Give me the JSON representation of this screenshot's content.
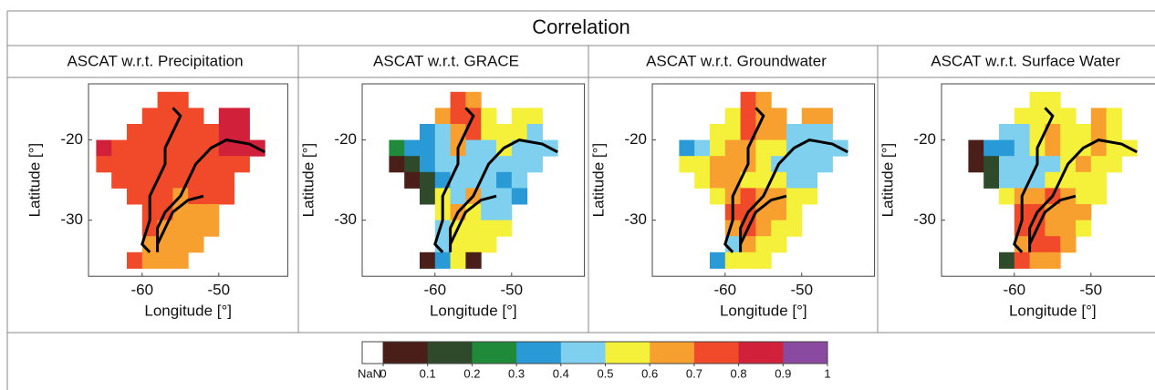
{
  "title": "Correlation",
  "colorbar": {
    "nan_label": "NaN",
    "nan_color": "#ffffff",
    "lim": [
      0,
      1
    ],
    "ticks": [
      0,
      0.1,
      0.2,
      0.3,
      0.4,
      0.5,
      0.6,
      0.7,
      0.8,
      0.9,
      1
    ],
    "colors": [
      "#4a1f1a",
      "#2e4a2a",
      "#1f8a3a",
      "#2a9ad6",
      "#7fd0ee",
      "#f5f03a",
      "#f7a030",
      "#f04a2a",
      "#d0203a",
      "#8a4aa0"
    ]
  },
  "chart_data": [
    {
      "type": "heatmap",
      "title": "ASCAT w.r.t. Precipitation",
      "xlabel": "Longitude [°]",
      "ylabel": "Latitude [°]",
      "xlim": [
        -67,
        -41
      ],
      "ylim": [
        -37,
        -13
      ],
      "xticks": [
        -60,
        -50
      ],
      "yticks": [
        -20,
        -30
      ],
      "x": [
        -65,
        -63,
        -61,
        -59,
        -57,
        -55,
        -53,
        -51,
        -49,
        -47,
        -45
      ],
      "y": [
        -15,
        -17,
        -19,
        -21,
        -23,
        -25,
        -27,
        -29,
        -31,
        -33,
        -35
      ],
      "values": [
        [
          null,
          null,
          null,
          null,
          0.75,
          0.75,
          null,
          null,
          null,
          null,
          null
        ],
        [
          null,
          null,
          null,
          0.75,
          0.75,
          0.75,
          0.75,
          null,
          0.85,
          0.85,
          null
        ],
        [
          null,
          null,
          0.75,
          0.75,
          0.75,
          0.75,
          0.75,
          0.75,
          0.85,
          0.85,
          null
        ],
        [
          0.85,
          0.75,
          0.75,
          0.75,
          0.75,
          0.75,
          0.75,
          0.75,
          0.85,
          0.85,
          0.85
        ],
        [
          0.75,
          0.75,
          0.75,
          0.75,
          0.75,
          0.75,
          0.75,
          0.75,
          0.75,
          0.75,
          null
        ],
        [
          null,
          0.75,
          0.75,
          0.75,
          0.75,
          0.75,
          0.75,
          0.75,
          0.75,
          null,
          null
        ],
        [
          null,
          null,
          0.75,
          0.75,
          0.75,
          0.65,
          0.75,
          0.75,
          0.75,
          null,
          null
        ],
        [
          null,
          null,
          null,
          0.75,
          0.75,
          0.65,
          0.65,
          0.65,
          null,
          null,
          null
        ],
        [
          null,
          null,
          null,
          0.75,
          0.65,
          0.65,
          0.65,
          0.65,
          null,
          null,
          null
        ],
        [
          null,
          null,
          null,
          0.65,
          0.65,
          0.65,
          0.65,
          null,
          null,
          null,
          null
        ],
        [
          null,
          null,
          0.75,
          0.65,
          0.65,
          0.65,
          null,
          null,
          null,
          null,
          null
        ]
      ]
    },
    {
      "type": "heatmap",
      "title": "ASCAT w.r.t. GRACE",
      "xlabel": "Longitude [°]",
      "ylabel": "Latitude [°]",
      "xlim": [
        -69.5,
        -40.5
      ],
      "ylim": [
        -37,
        -13
      ],
      "xticks": [
        -60,
        -50
      ],
      "yticks": [
        -20,
        -30
      ],
      "x": [
        -65,
        -63,
        -61,
        -59,
        -57,
        -55,
        -53,
        -51,
        -49,
        -47,
        -45
      ],
      "y": [
        -15,
        -17,
        -19,
        -21,
        -23,
        -25,
        -27,
        -29,
        -31,
        -33,
        -35
      ],
      "values": [
        [
          null,
          null,
          null,
          null,
          0.75,
          0.65,
          null,
          null,
          null,
          null,
          null
        ],
        [
          null,
          null,
          null,
          0.65,
          0.75,
          0.75,
          0.55,
          null,
          0.55,
          0.55,
          null
        ],
        [
          null,
          null,
          0.35,
          0.45,
          0.65,
          0.75,
          0.55,
          0.55,
          0.55,
          0.45,
          null
        ],
        [
          0.25,
          0.35,
          0.35,
          0.45,
          0.65,
          0.45,
          0.45,
          0.55,
          0.45,
          0.45,
          0.45
        ],
        [
          0.05,
          0.15,
          0.35,
          0.45,
          0.45,
          0.45,
          0.45,
          0.45,
          0.45,
          0.45,
          null
        ],
        [
          null,
          0.05,
          0.15,
          0.35,
          0.45,
          0.45,
          0.45,
          0.35,
          0.45,
          null,
          null
        ],
        [
          null,
          null,
          0.15,
          0.55,
          0.45,
          0.65,
          0.45,
          0.45,
          0.35,
          null,
          null
        ],
        [
          null,
          null,
          null,
          0.55,
          0.65,
          0.55,
          0.45,
          0.45,
          null,
          null,
          null
        ],
        [
          null,
          null,
          null,
          0.45,
          0.55,
          0.55,
          0.55,
          0.55,
          null,
          null,
          null
        ],
        [
          null,
          null,
          null,
          0.45,
          0.55,
          0.55,
          0.55,
          null,
          null,
          null,
          null
        ],
        [
          null,
          null,
          0.05,
          0.35,
          0.55,
          0.05,
          null,
          null,
          null,
          null,
          null
        ]
      ]
    },
    {
      "type": "heatmap",
      "title": "ASCAT w.r.t. Groundwater",
      "xlabel": "Longitude [°]",
      "ylabel": "Latitude [°]",
      "xlim": [
        -69.5,
        -40.5
      ],
      "ylim": [
        -37,
        -13
      ],
      "xticks": [
        -60,
        -50
      ],
      "yticks": [
        -20,
        -30
      ],
      "x": [
        -65,
        -63,
        -61,
        -59,
        -57,
        -55,
        -53,
        -51,
        -49,
        -47,
        -45
      ],
      "y": [
        -15,
        -17,
        -19,
        -21,
        -23,
        -25,
        -27,
        -29,
        -31,
        -33,
        -35
      ],
      "values": [
        [
          null,
          null,
          null,
          null,
          0.75,
          0.65,
          null,
          null,
          null,
          null,
          null
        ],
        [
          null,
          null,
          null,
          0.55,
          0.75,
          0.65,
          0.65,
          null,
          0.65,
          0.65,
          null
        ],
        [
          null,
          null,
          0.55,
          0.55,
          0.75,
          0.65,
          0.65,
          0.45,
          0.45,
          0.45,
          null
        ],
        [
          0.35,
          0.45,
          0.55,
          0.65,
          0.65,
          0.55,
          0.55,
          0.45,
          0.45,
          0.45,
          0.45
        ],
        [
          0.55,
          0.55,
          0.65,
          0.65,
          0.65,
          0.55,
          0.45,
          0.45,
          0.45,
          0.45,
          null
        ],
        [
          null,
          0.55,
          0.65,
          0.65,
          0.55,
          0.55,
          0.55,
          0.45,
          0.45,
          null,
          null
        ],
        [
          null,
          null,
          0.55,
          0.65,
          0.75,
          0.65,
          0.65,
          0.55,
          0.55,
          null,
          null
        ],
        [
          null,
          null,
          null,
          0.75,
          0.75,
          0.65,
          0.65,
          0.55,
          null,
          null,
          null
        ],
        [
          null,
          null,
          null,
          0.65,
          0.75,
          0.65,
          0.55,
          0.55,
          null,
          null,
          null
        ],
        [
          null,
          null,
          null,
          0.45,
          0.65,
          0.55,
          0.55,
          null,
          null,
          null,
          null
        ],
        [
          null,
          null,
          0.35,
          0.55,
          0.55,
          0.55,
          null,
          null,
          null,
          null,
          null
        ]
      ]
    },
    {
      "type": "heatmap",
      "title": "ASCAT w.r.t. Surface Water",
      "xlabel": "Longitude [°]",
      "ylabel": "Latitude [°]",
      "xlim": [
        -69.5,
        -40.5
      ],
      "ylim": [
        -37,
        -13
      ],
      "xticks": [
        -60,
        -50
      ],
      "yticks": [
        -20,
        -30
      ],
      "x": [
        -65,
        -63,
        -61,
        -59,
        -57,
        -55,
        -53,
        -51,
        -49,
        -47,
        -45
      ],
      "y": [
        -15,
        -17,
        -19,
        -21,
        -23,
        -25,
        -27,
        -29,
        -31,
        -33,
        -35
      ],
      "values": [
        [
          null,
          null,
          null,
          null,
          0.55,
          0.55,
          null,
          null,
          null,
          null,
          null
        ],
        [
          null,
          null,
          null,
          0.55,
          0.55,
          0.55,
          0.55,
          null,
          0.65,
          0.55,
          null
        ],
        [
          null,
          null,
          0.45,
          0.45,
          0.55,
          0.65,
          0.55,
          0.55,
          0.65,
          0.55,
          null
        ],
        [
          0.05,
          0.35,
          0.35,
          0.45,
          0.55,
          0.65,
          0.55,
          0.55,
          0.65,
          0.55,
          0.55
        ],
        [
          0.05,
          0.15,
          0.45,
          0.45,
          0.45,
          0.45,
          0.55,
          0.65,
          0.55,
          0.55,
          null
        ],
        [
          null,
          0.15,
          0.45,
          0.45,
          0.45,
          0.55,
          0.55,
          0.55,
          0.55,
          null,
          null
        ],
        [
          null,
          null,
          0.55,
          0.65,
          0.65,
          0.75,
          0.65,
          0.55,
          0.55,
          null,
          null
        ],
        [
          null,
          null,
          null,
          0.75,
          0.75,
          0.65,
          0.65,
          0.65,
          null,
          null,
          null
        ],
        [
          null,
          null,
          null,
          0.75,
          0.75,
          0.65,
          0.65,
          0.55,
          null,
          null,
          null
        ],
        [
          null,
          null,
          null,
          0.65,
          0.75,
          0.75,
          0.65,
          null,
          null,
          null,
          null
        ],
        [
          null,
          null,
          0.15,
          0.75,
          0.65,
          0.65,
          null,
          null,
          null,
          null,
          null
        ]
      ]
    }
  ]
}
